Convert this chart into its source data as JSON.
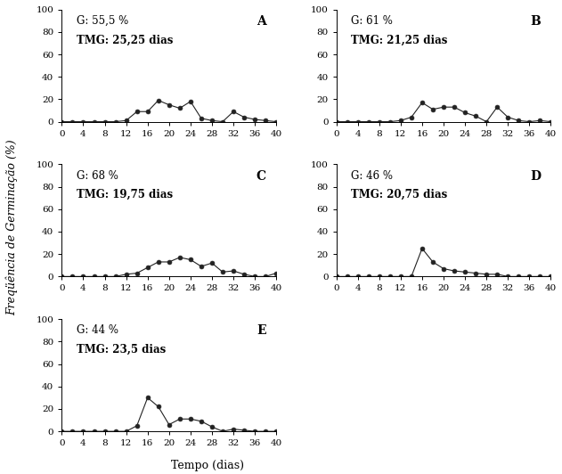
{
  "x": [
    0,
    2,
    4,
    6,
    8,
    10,
    12,
    14,
    16,
    18,
    20,
    22,
    24,
    26,
    28,
    30,
    32,
    34,
    36,
    38,
    40
  ],
  "A": {
    "label": "A",
    "G": "55,5 %",
    "TMG": "25,25 dias",
    "y": [
      0,
      0,
      0,
      0,
      0,
      0,
      1,
      9,
      9,
      19,
      15,
      12,
      18,
      3,
      1,
      0,
      9,
      4,
      2,
      1,
      0
    ]
  },
  "B": {
    "label": "B",
    "G": "61 %",
    "TMG": "21,25 dias",
    "y": [
      0,
      0,
      0,
      0,
      0,
      0,
      1,
      4,
      17,
      11,
      13,
      13,
      8,
      5,
      0,
      13,
      4,
      1,
      0,
      1,
      0
    ]
  },
  "C": {
    "label": "C",
    "G": "68 %",
    "TMG": "19,75 dias",
    "y": [
      0,
      0,
      0,
      0,
      0,
      0,
      2,
      3,
      8,
      13,
      13,
      17,
      15,
      9,
      12,
      4,
      5,
      2,
      0,
      0,
      3
    ]
  },
  "D": {
    "label": "D",
    "G": "46 %",
    "TMG": "20,75 dias",
    "y": [
      0,
      0,
      0,
      0,
      0,
      0,
      0,
      0,
      25,
      13,
      7,
      5,
      4,
      3,
      2,
      2,
      0,
      0,
      0,
      0,
      0
    ]
  },
  "E": {
    "label": "E",
    "G": "44 %",
    "TMG": "23,5 dias",
    "y": [
      0,
      0,
      0,
      0,
      0,
      0,
      0,
      5,
      30,
      22,
      6,
      11,
      11,
      9,
      4,
      0,
      2,
      1,
      0,
      0,
      0
    ]
  },
  "ylabel": "Freqüência de Germinação (%)",
  "xlabel": "Tempo (dias)",
  "xlim": [
    0,
    40
  ],
  "ylim": [
    0,
    100
  ],
  "xticks": [
    0,
    4,
    8,
    12,
    16,
    20,
    24,
    28,
    32,
    36,
    40
  ],
  "yticks": [
    0,
    20,
    40,
    60,
    80,
    100
  ],
  "line_color": "#222222",
  "marker": "o",
  "markersize": 3.5,
  "linewidth": 0.8,
  "background_color": "#ffffff",
  "label_fontsize": 9,
  "tick_fontsize": 7.5,
  "annotation_fontsize": 8.5,
  "panel_label_fontsize": 10
}
